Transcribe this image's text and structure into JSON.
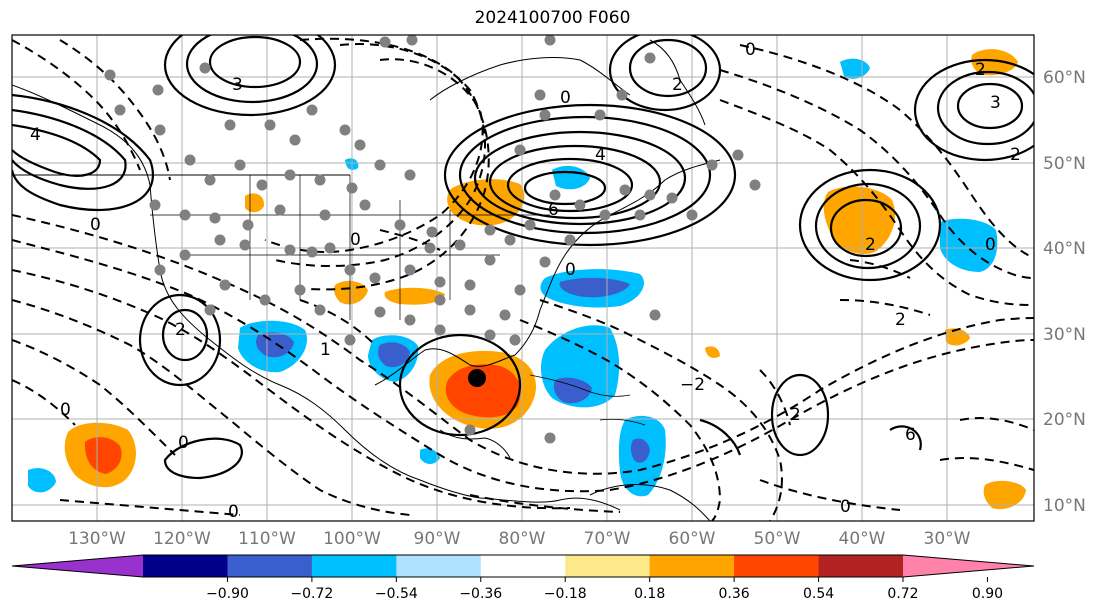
{
  "title": "2024100700 F060",
  "lon_labels": [
    "130°W",
    "120°W",
    "110°W",
    "100°W",
    "90°W",
    "80°W",
    "70°W",
    "60°W",
    "50°W",
    "40°W",
    "30°W"
  ],
  "lat_labels": [
    "60°N",
    "50°N",
    "40°N",
    "30°N",
    "20°N",
    "10°N"
  ],
  "colorbar": {
    "ticks": [
      "−0.90",
      "−0.72",
      "−0.54",
      "−0.36",
      "−0.18",
      "0.18",
      "0.36",
      "0.54",
      "0.72",
      "0.90"
    ],
    "colors": [
      "#9932cc",
      "#00008b",
      "#3a5fcd",
      "#00bfff",
      "#b0e2ff",
      "#ffffff",
      "#fee98a",
      "#ffa500",
      "#ff4500",
      "#b22222",
      "#ff82ab"
    ]
  },
  "contour_labels": [
    "0",
    "2",
    "3",
    "4",
    "6",
    "1",
    "−2"
  ]
}
